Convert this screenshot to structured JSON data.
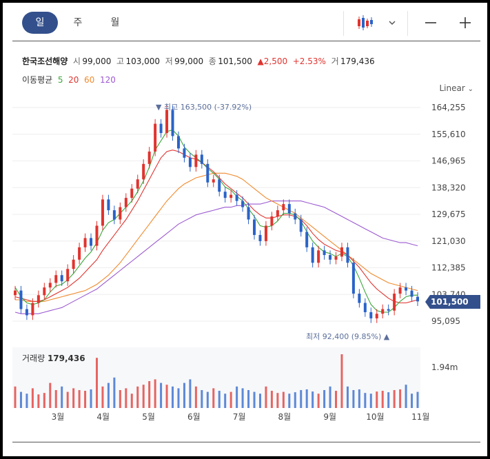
{
  "tabs": [
    {
      "label": "일",
      "active": true
    },
    {
      "label": "주",
      "active": false
    },
    {
      "label": "월",
      "active": false
    }
  ],
  "toolbar": {
    "chart_type_icon": "candlestick-icon",
    "dropdown_icon": "chevron-down-icon",
    "minimize_icon": "minus-icon",
    "add_icon": "plus-icon"
  },
  "stock": {
    "name": "한국조선해양",
    "open_label": "시",
    "open": "99,000",
    "high_label": "고",
    "high": "103,000",
    "low_label": "저",
    "low": "99,000",
    "close_label": "종",
    "close": "101,500",
    "change": "2,500",
    "change_pct": "+2.53%",
    "volume_label": "거",
    "volume": "179,436"
  },
  "moving_average": {
    "label": "이동평균",
    "periods": [
      "5",
      "20",
      "60",
      "120"
    ]
  },
  "scale": "Linear",
  "annotations": {
    "max": "최고 163,500 (-37.92%)",
    "min": "최저 92,400 (9.85%)"
  },
  "current_price_tag": "101,500",
  "volume_panel": {
    "label": "거래량",
    "value": "179,436",
    "axis_max": "1.94m"
  },
  "colors": {
    "up": "#e0332e",
    "down": "#2a63c9",
    "ma5": "#3aa63a",
    "ma20": "#e0332e",
    "ma60": "#f08a2c",
    "ma120": "#9b59d0",
    "accent": "#33508c"
  },
  "chart_data": {
    "type": "candlestick",
    "x_axis_ticks": [
      "3월",
      "4월",
      "5월",
      "6월",
      "7월",
      "8월",
      "9월",
      "10월",
      "11월"
    ],
    "y_axis_ticks": [
      "164,255",
      "155,610",
      "146,965",
      "138,320",
      "129,675",
      "121,030",
      "112,385",
      "103,740",
      "95,095"
    ],
    "ylim": [
      95095,
      164255
    ],
    "close": [
      105000,
      99000,
      97000,
      101000,
      103500,
      106000,
      107500,
      110000,
      108000,
      112000,
      115000,
      119000,
      122000,
      119500,
      126000,
      134500,
      131000,
      128000,
      132000,
      135000,
      138000,
      141000,
      146000,
      150000,
      159000,
      156000,
      163500,
      155000,
      151000,
      148000,
      145000,
      149000,
      146000,
      140000,
      141000,
      137000,
      135000,
      136000,
      134000,
      132000,
      128000,
      123000,
      121000,
      126000,
      129000,
      131000,
      133000,
      130000,
      128000,
      124000,
      119000,
      114000,
      118000,
      116500,
      115000,
      116000,
      119000,
      114000,
      104000,
      101000,
      98000,
      96000,
      97500,
      99000,
      98500,
      104000,
      106000,
      105000,
      103000,
      101500
    ],
    "ma5": [
      106000,
      103000,
      101000,
      100500,
      101000,
      102000,
      104500,
      106500,
      107000,
      108500,
      110500,
      113000,
      115500,
      117500,
      120500,
      124500,
      127000,
      128000,
      130000,
      132000,
      134000,
      137000,
      140500,
      145000,
      150500,
      153500,
      156500,
      157000,
      155000,
      151500,
      149500,
      148000,
      146500,
      144500,
      143000,
      141000,
      138500,
      137500,
      135500,
      134000,
      131500,
      129000,
      126000,
      125500,
      126000,
      127500,
      130000,
      130000,
      129500,
      127500,
      124000,
      121000,
      119000,
      117500,
      117000,
      116000,
      117000,
      116000,
      113000,
      109000,
      104500,
      100500,
      98500,
      98000,
      98000,
      99500,
      101500,
      103000,
      103500,
      103500
    ],
    "ma20": [
      103000,
      102500,
      102000,
      101500,
      101500,
      102000,
      103000,
      104000,
      105000,
      106000,
      107500,
      109000,
      111000,
      113000,
      115000,
      118000,
      120500,
      123000,
      125500,
      128000,
      131000,
      134000,
      137500,
      141000,
      144500,
      148000,
      150000,
      150500,
      150000,
      149000,
      148000,
      147500,
      146500,
      145000,
      143500,
      141500,
      139500,
      138000,
      136500,
      135000,
      133000,
      131000,
      129500,
      128500,
      128500,
      129000,
      129500,
      129500,
      129000,
      128000,
      126000,
      123500,
      121500,
      120000,
      119000,
      118000,
      117500,
      116500,
      114500,
      112500,
      110000,
      107500,
      105500,
      104000,
      102500,
      101500,
      101000,
      101000,
      101500,
      102000
    ],
    "ma60": [
      102000,
      102000,
      101500,
      101500,
      101500,
      101500,
      102000,
      102500,
      103000,
      103500,
      104000,
      104500,
      105000,
      106000,
      107000,
      108500,
      110000,
      112000,
      114000,
      116500,
      119000,
      121500,
      124000,
      126500,
      129000,
      131500,
      134000,
      136000,
      138000,
      139500,
      140500,
      141500,
      142000,
      142500,
      143000,
      143000,
      143000,
      142500,
      142000,
      141000,
      139500,
      138000,
      136500,
      135000,
      134000,
      133000,
      132000,
      131000,
      130000,
      128500,
      127000,
      125500,
      124000,
      122500,
      121000,
      119500,
      118000,
      116500,
      115000,
      113500,
      112000,
      110500,
      109500,
      108500,
      107500,
      107000,
      106500,
      106000,
      105500,
      105000
    ],
    "ma120": [
      98000,
      97500,
      97500,
      97500,
      97500,
      98000,
      98500,
      99000,
      99500,
      100500,
      101500,
      102500,
      103500,
      104500,
      105500,
      107000,
      108500,
      110000,
      111500,
      113000,
      114500,
      116000,
      117500,
      119000,
      120500,
      122000,
      123500,
      125000,
      126500,
      127500,
      128500,
      129500,
      130000,
      130500,
      131000,
      131500,
      132000,
      132000,
      132500,
      132500,
      133000,
      133000,
      133000,
      133500,
      134000,
      134000,
      134000,
      134000,
      134000,
      134000,
      133500,
      133000,
      132500,
      132000,
      131000,
      130000,
      129000,
      128000,
      127000,
      126000,
      125000,
      124000,
      123000,
      122000,
      121500,
      121000,
      120500,
      120500,
      120000,
      119500
    ],
    "volume": [
      60,
      45,
      40,
      55,
      38,
      42,
      70,
      50,
      60,
      45,
      55,
      50,
      48,
      52,
      140,
      60,
      70,
      85,
      50,
      55,
      40,
      60,
      65,
      75,
      80,
      70,
      65,
      60,
      55,
      70,
      80,
      60,
      50,
      45,
      55,
      48,
      40,
      45,
      60,
      55,
      50,
      45,
      40,
      60,
      48,
      42,
      45,
      40,
      44,
      50,
      52,
      46,
      40,
      50,
      60,
      48,
      150,
      60,
      50,
      52,
      42,
      40,
      46,
      48,
      44,
      50,
      52,
      65,
      40,
      45
    ]
  }
}
